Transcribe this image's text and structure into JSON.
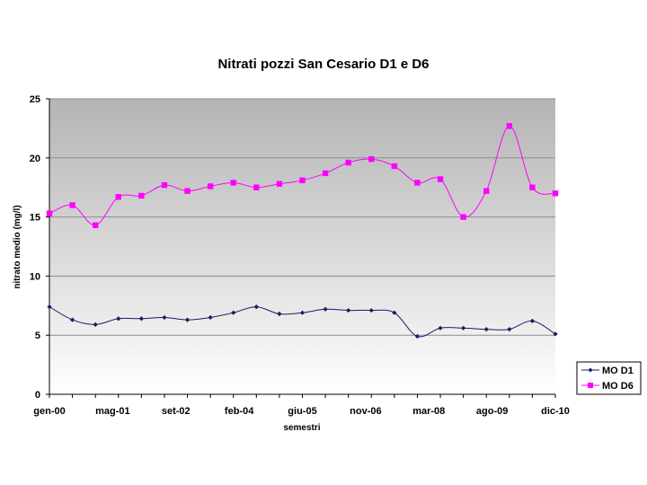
{
  "chart_data": {
    "type": "line",
    "title": "Nitrati pozzi San Cesario D1 e D6",
    "xlabel": "semestri",
    "ylabel": "nitrato medio (mg/l)",
    "ylim": [
      0,
      25
    ],
    "y_ticks": [
      "0",
      "5",
      "10",
      "15",
      "20",
      "25"
    ],
    "x_tick_labels": [
      "gen-00",
      "mag-01",
      "set-02",
      "feb-04",
      "giu-05",
      "nov-06",
      "mar-08",
      "ago-09",
      "dic-10"
    ],
    "grid": true,
    "legend_position": "bottom-right",
    "series": [
      {
        "name": "MO D1",
        "color": "#1a1a66",
        "marker": "diamond",
        "values": [
          7.4,
          6.3,
          5.9,
          6.4,
          6.4,
          6.5,
          6.3,
          6.5,
          6.9,
          7.4,
          6.8,
          6.9,
          7.2,
          7.1,
          7.1,
          6.9,
          4.9,
          5.6,
          5.6,
          5.5,
          5.5,
          6.2,
          5.1
        ]
      },
      {
        "name": "MO D6",
        "color": "#ff00ff",
        "marker": "square",
        "values": [
          15.3,
          16.0,
          14.3,
          16.7,
          16.8,
          17.7,
          17.2,
          17.6,
          17.9,
          17.5,
          17.8,
          18.1,
          18.7,
          19.6,
          19.9,
          19.3,
          17.9,
          18.2,
          15.0,
          17.2,
          22.7,
          17.5,
          17.0
        ]
      }
    ]
  }
}
